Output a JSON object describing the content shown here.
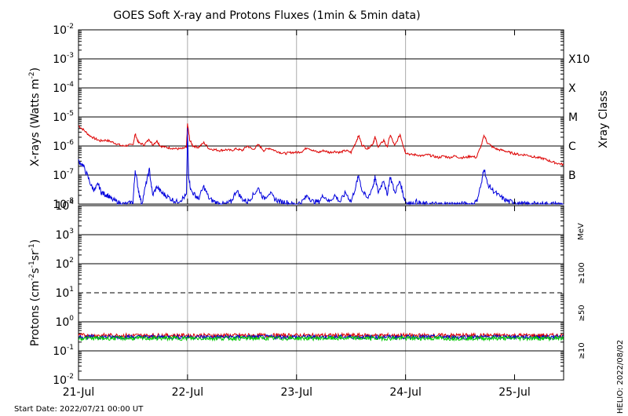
{
  "title": "GOES Soft X-ray and Protons Fluxes   (1min & 5min data)",
  "footer": {
    "start_date": "Start Date: 2022/07/21 00:00 UT",
    "helio_stamp": "HELIO: 2022/08/02"
  },
  "colors": {
    "xray_long": "#dd0000",
    "xray_short": "#0000dd",
    "proton_10": "#dd0000",
    "proton_50": "#0000cc",
    "proton_100": "#00cc00",
    "grid_h": "#000000",
    "grid_v": "#aaaaaa"
  },
  "chart_data": [
    {
      "type": "line",
      "panel": "xrays",
      "ylabel": "X-rays (Watts m-2)",
      "ylabel_parts": {
        "main": "X-rays (Watts m",
        "sup": "-2",
        "tail": ")"
      },
      "y_scale": "log",
      "ylim": [
        1e-08,
        0.01
      ],
      "y_ticks": [
        {
          "base": "10",
          "exp": "-2"
        },
        {
          "base": "10",
          "exp": "-3"
        },
        {
          "base": "10",
          "exp": "-4"
        },
        {
          "base": "10",
          "exp": "-5"
        },
        {
          "base": "10",
          "exp": "-6"
        },
        {
          "base": "10",
          "exp": "-7"
        },
        {
          "base": "10",
          "exp": "-8"
        }
      ],
      "y_tick_values": [
        0.01,
        0.001,
        0.0001,
        1e-05,
        1e-06,
        1e-07,
        1e-08
      ],
      "right_axis_label": "Xray Class",
      "right_classes": [
        {
          "label": "X10",
          "value": 0.001
        },
        {
          "label": "X",
          "value": 0.0001
        },
        {
          "label": "M",
          "value": 1e-05
        },
        {
          "label": "C",
          "value": 1e-06
        },
        {
          "label": "B",
          "value": 1e-07
        }
      ],
      "x_days": [
        0,
        1,
        2,
        3,
        4
      ],
      "series": [
        {
          "key": "long",
          "points": [
            [
              0.0,
              5e-06
            ],
            [
              0.05,
              3.5e-06
            ],
            [
              0.1,
              2.3e-06
            ],
            [
              0.15,
              1.8e-06
            ],
            [
              0.2,
              1.5e-06
            ],
            [
              0.25,
              1.6e-06
            ],
            [
              0.3,
              1.4e-06
            ],
            [
              0.35,
              1.2e-06
            ],
            [
              0.4,
              1e-06
            ],
            [
              0.45,
              1.05e-06
            ],
            [
              0.5,
              1.1e-06
            ],
            [
              0.52,
              2.6e-06
            ],
            [
              0.55,
              1.3e-06
            ],
            [
              0.6,
              1.1e-06
            ],
            [
              0.65,
              1.7e-06
            ],
            [
              0.68,
              1.1e-06
            ],
            [
              0.72,
              1.5e-06
            ],
            [
              0.75,
              1e-06
            ],
            [
              0.8,
              9e-07
            ],
            [
              0.85,
              8.5e-07
            ],
            [
              0.9,
              8e-07
            ],
            [
              0.95,
              8e-07
            ],
            [
              0.99,
              9e-07
            ],
            [
              1.0,
              5.8e-06
            ],
            [
              1.02,
              1.6e-06
            ],
            [
              1.05,
              1e-06
            ],
            [
              1.1,
              9e-07
            ],
            [
              1.15,
              1.3e-06
            ],
            [
              1.2,
              8e-07
            ],
            [
              1.25,
              7.5e-07
            ],
            [
              1.3,
              7e-07
            ],
            [
              1.35,
              7.5e-07
            ],
            [
              1.4,
              7e-07
            ],
            [
              1.45,
              8e-07
            ],
            [
              1.5,
              7e-07
            ],
            [
              1.55,
              1e-06
            ],
            [
              1.6,
              7.5e-07
            ],
            [
              1.65,
              1.1e-06
            ],
            [
              1.7,
              7e-07
            ],
            [
              1.75,
              8.5e-07
            ],
            [
              1.8,
              7e-07
            ],
            [
              1.85,
              6e-07
            ],
            [
              1.9,
              5.5e-07
            ],
            [
              1.95,
              6e-07
            ],
            [
              2.0,
              6e-07
            ],
            [
              2.05,
              6.5e-07
            ],
            [
              2.1,
              9e-07
            ],
            [
              2.15,
              7e-07
            ],
            [
              2.2,
              6e-07
            ],
            [
              2.25,
              7e-07
            ],
            [
              2.3,
              6e-07
            ],
            [
              2.35,
              6.5e-07
            ],
            [
              2.4,
              6e-07
            ],
            [
              2.45,
              7e-07
            ],
            [
              2.5,
              6e-07
            ],
            [
              2.55,
              1.5e-06
            ],
            [
              2.57,
              2.3e-06
            ],
            [
              2.6,
              1.1e-06
            ],
            [
              2.65,
              8e-07
            ],
            [
              2.7,
              1.2e-06
            ],
            [
              2.72,
              2e-06
            ],
            [
              2.75,
              9e-07
            ],
            [
              2.8,
              1.6e-06
            ],
            [
              2.83,
              9e-07
            ],
            [
              2.86,
              2.4e-06
            ],
            [
              2.9,
              1e-06
            ],
            [
              2.95,
              2.5e-06
            ],
            [
              2.98,
              1e-06
            ],
            [
              3.0,
              6e-07
            ],
            [
              3.05,
              5e-07
            ],
            [
              3.1,
              5e-07
            ],
            [
              3.15,
              4.5e-07
            ],
            [
              3.2,
              5e-07
            ],
            [
              3.25,
              4.5e-07
            ],
            [
              3.3,
              4e-07
            ],
            [
              3.35,
              4.5e-07
            ],
            [
              3.4,
              4e-07
            ],
            [
              3.45,
              4.5e-07
            ],
            [
              3.5,
              4e-07
            ],
            [
              3.55,
              4e-07
            ],
            [
              3.6,
              4.5e-07
            ],
            [
              3.65,
              4e-07
            ],
            [
              3.7,
              1.2e-06
            ],
            [
              3.72,
              2.4e-06
            ],
            [
              3.75,
              1.3e-06
            ],
            [
              3.8,
              9e-07
            ],
            [
              3.85,
              7.5e-07
            ],
            [
              3.9,
              7e-07
            ],
            [
              3.95,
              6e-07
            ],
            [
              4.0,
              5.5e-07
            ],
            [
              4.05,
              5e-07
            ],
            [
              4.1,
              5e-07
            ],
            [
              4.15,
              4.5e-07
            ],
            [
              4.2,
              4e-07
            ],
            [
              4.25,
              3.8e-07
            ],
            [
              4.3,
              3.3e-07
            ],
            [
              4.35,
              2.8e-07
            ],
            [
              4.4,
              2.5e-07
            ],
            [
              4.45,
              2.3e-07
            ]
          ]
        },
        {
          "key": "short",
          "points": [
            [
              0.0,
              3e-07
            ],
            [
              0.04,
              2.2e-07
            ],
            [
              0.08,
              1e-07
            ],
            [
              0.12,
              4e-08
            ],
            [
              0.15,
              3e-08
            ],
            [
              0.18,
              5e-08
            ],
            [
              0.21,
              2.5e-08
            ],
            [
              0.24,
              2.2e-08
            ],
            [
              0.27,
              2e-08
            ],
            [
              0.3,
              1.5e-08
            ],
            [
              0.35,
              1.2e-08
            ],
            [
              0.4,
              1e-08
            ],
            [
              0.45,
              1e-08
            ],
            [
              0.5,
              1.2e-08
            ],
            [
              0.52,
              1.5e-07
            ],
            [
              0.55,
              3e-08
            ],
            [
              0.58,
              1e-08
            ],
            [
              0.62,
              5e-08
            ],
            [
              0.65,
              1.5e-07
            ],
            [
              0.68,
              2e-08
            ],
            [
              0.72,
              4e-08
            ],
            [
              0.76,
              2.5e-08
            ],
            [
              0.8,
              2e-08
            ],
            [
              0.85,
              1.5e-08
            ],
            [
              0.9,
              1.2e-08
            ],
            [
              0.95,
              1.5e-08
            ],
            [
              0.99,
              2e-08
            ],
            [
              1.0,
              3.5e-06
            ],
            [
              1.01,
              1e-07
            ],
            [
              1.03,
              3e-08
            ],
            [
              1.07,
              2e-08
            ],
            [
              1.1,
              1.5e-08
            ],
            [
              1.15,
              4e-08
            ],
            [
              1.2,
              1.5e-08
            ],
            [
              1.25,
              1.2e-08
            ],
            [
              1.3,
              1e-08
            ],
            [
              1.35,
              1e-08
            ],
            [
              1.4,
              1.2e-08
            ],
            [
              1.45,
              3e-08
            ],
            [
              1.5,
              1.5e-08
            ],
            [
              1.55,
              1.2e-08
            ],
            [
              1.6,
              2e-08
            ],
            [
              1.65,
              3.5e-08
            ],
            [
              1.7,
              1.5e-08
            ],
            [
              1.75,
              2.5e-08
            ],
            [
              1.8,
              1.5e-08
            ],
            [
              1.85,
              1.2e-08
            ],
            [
              1.9,
              1.2e-08
            ],
            [
              1.95,
              1e-08
            ],
            [
              2.0,
              1e-08
            ],
            [
              2.05,
              1.2e-08
            ],
            [
              2.1,
              2e-08
            ],
            [
              2.15,
              1.2e-08
            ],
            [
              2.2,
              1.2e-08
            ],
            [
              2.25,
              2e-08
            ],
            [
              2.3,
              1.2e-08
            ],
            [
              2.35,
              2e-08
            ],
            [
              2.4,
              1.2e-08
            ],
            [
              2.45,
              2.5e-08
            ],
            [
              2.5,
              1.2e-08
            ],
            [
              2.55,
              5e-08
            ],
            [
              2.57,
              1e-07
            ],
            [
              2.6,
              3e-08
            ],
            [
              2.65,
              1.5e-08
            ],
            [
              2.7,
              4e-08
            ],
            [
              2.72,
              8e-08
            ],
            [
              2.75,
              2.5e-08
            ],
            [
              2.8,
              7e-08
            ],
            [
              2.83,
              2e-08
            ],
            [
              2.86,
              9e-08
            ],
            [
              2.9,
              2.5e-08
            ],
            [
              2.95,
              6e-08
            ],
            [
              2.98,
              2e-08
            ],
            [
              3.0,
              1.2e-08
            ],
            [
              3.05,
              1e-08
            ],
            [
              3.1,
              1.2e-08
            ],
            [
              3.15,
              1e-08
            ],
            [
              3.2,
              1e-08
            ],
            [
              3.25,
              1e-08
            ],
            [
              3.3,
              1e-08
            ],
            [
              3.35,
              1e-08
            ],
            [
              3.4,
              1e-08
            ],
            [
              3.45,
              1e-08
            ],
            [
              3.5,
              1e-08
            ],
            [
              3.55,
              1e-08
            ],
            [
              3.6,
              1e-08
            ],
            [
              3.65,
              1.2e-08
            ],
            [
              3.7,
              6e-08
            ],
            [
              3.72,
              1.8e-07
            ],
            [
              3.75,
              5e-08
            ],
            [
              3.8,
              3e-08
            ],
            [
              3.85,
              2e-08
            ],
            [
              3.9,
              1.5e-08
            ],
            [
              3.95,
              1.2e-08
            ],
            [
              4.0,
              1.2e-08
            ],
            [
              4.05,
              1e-08
            ],
            [
              4.1,
              1e-08
            ],
            [
              4.15,
              1e-08
            ],
            [
              4.2,
              1e-08
            ],
            [
              4.25,
              1e-08
            ],
            [
              4.3,
              1e-08
            ],
            [
              4.35,
              1e-08
            ],
            [
              4.4,
              1e-08
            ],
            [
              4.45,
              1e-08
            ]
          ]
        }
      ]
    },
    {
      "type": "line",
      "panel": "protons",
      "ylabel": "Protons (cm-2s-1sr-1)",
      "ylabel_parts": {
        "main": "Protons (cm",
        "sup1": "-2",
        "mid1": "s",
        "sup2": "-1",
        "mid2": "sr",
        "sup3": "-1",
        "tail": ")"
      },
      "y_scale": "log",
      "ylim": [
        0.01,
        10000.0
      ],
      "y_ticks": [
        {
          "base": "10",
          "exp": "4"
        },
        {
          "base": "10",
          "exp": "3"
        },
        {
          "base": "10",
          "exp": "2"
        },
        {
          "base": "10",
          "exp": "1"
        },
        {
          "base": "10",
          "exp": "0"
        },
        {
          "base": "10",
          "exp": "-1"
        },
        {
          "base": "10",
          "exp": "-2"
        }
      ],
      "y_tick_values": [
        10000.0,
        1000.0,
        100.0,
        10.0,
        1.0,
        0.1,
        0.01
      ],
      "threshold": 10,
      "energy_unit": "MeV",
      "energy_labels": [
        "≥100",
        "≥50",
        "≥10"
      ],
      "series": [
        {
          "key": "p10",
          "name": "≥10",
          "level": 0.34
        },
        {
          "key": "p50",
          "name": "≥50",
          "level": 0.3
        },
        {
          "key": "p100",
          "name": "≥100",
          "level": 0.27
        }
      ]
    }
  ],
  "x_tick_labels": [
    "21-Jul",
    "22-Jul",
    "23-Jul",
    "24-Jul",
    "25-Jul"
  ]
}
